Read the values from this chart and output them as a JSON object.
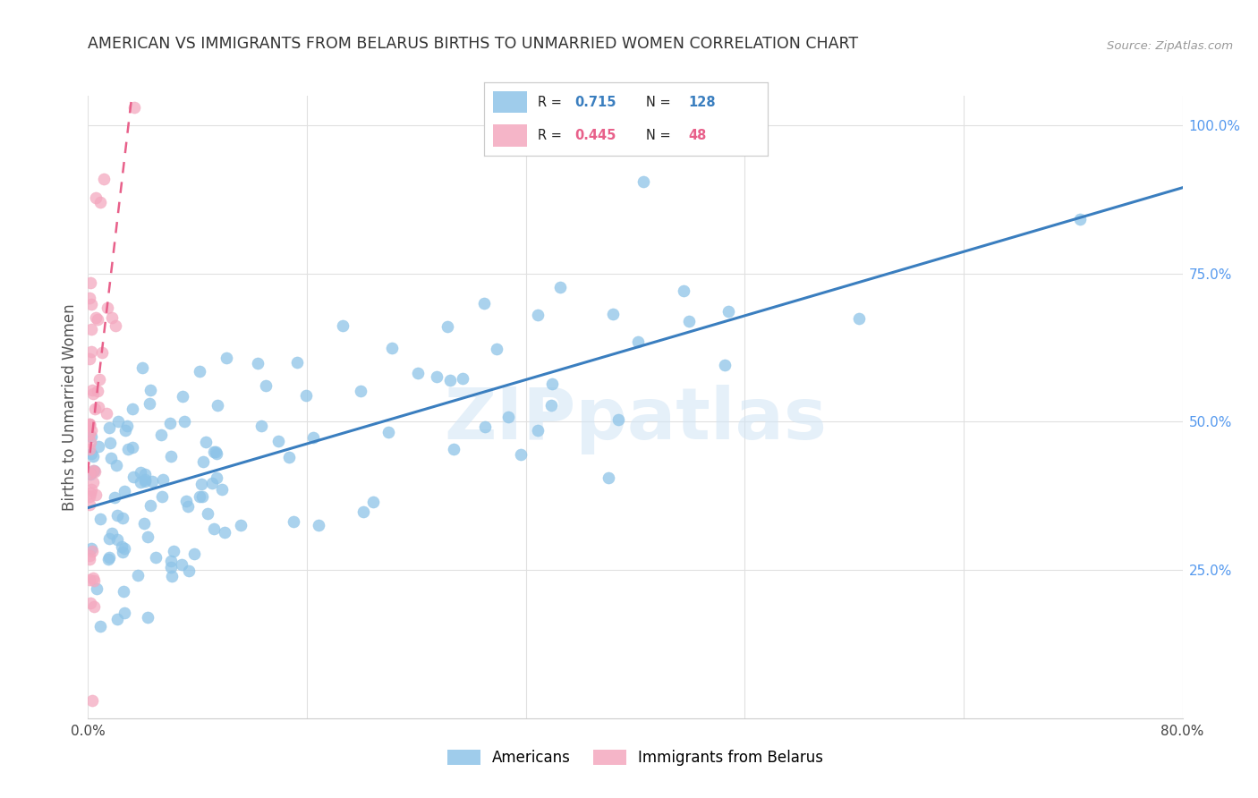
{
  "title": "AMERICAN VS IMMIGRANTS FROM BELARUS BIRTHS TO UNMARRIED WOMEN CORRELATION CHART",
  "source": "Source: ZipAtlas.com",
  "ylabel": "Births to Unmarried Women",
  "watermark": "ZIPpatlas",
  "legend_blue_r": "0.715",
  "legend_blue_n": "128",
  "legend_pink_r": "0.445",
  "legend_pink_n": "48",
  "legend_label_blue": "Americans",
  "legend_label_pink": "Immigrants from Belarus",
  "blue_color": "#8ec4e8",
  "pink_color": "#f4a8bf",
  "blue_line_color": "#3a7ebf",
  "pink_line_color": "#e8608a",
  "background_color": "#ffffff",
  "grid_color": "#e0e0e0",
  "title_color": "#333333",
  "axis_label_color": "#555555",
  "right_tick_color": "#5599ee",
  "x_min": 0.0,
  "x_max": 0.8,
  "y_min": 0.0,
  "y_max": 1.05,
  "blue_line_x": [
    0.0,
    0.8
  ],
  "blue_line_y": [
    0.355,
    0.895
  ],
  "pink_line_x": [
    -0.002,
    0.032
  ],
  "pink_line_y": [
    0.38,
    1.05
  ]
}
